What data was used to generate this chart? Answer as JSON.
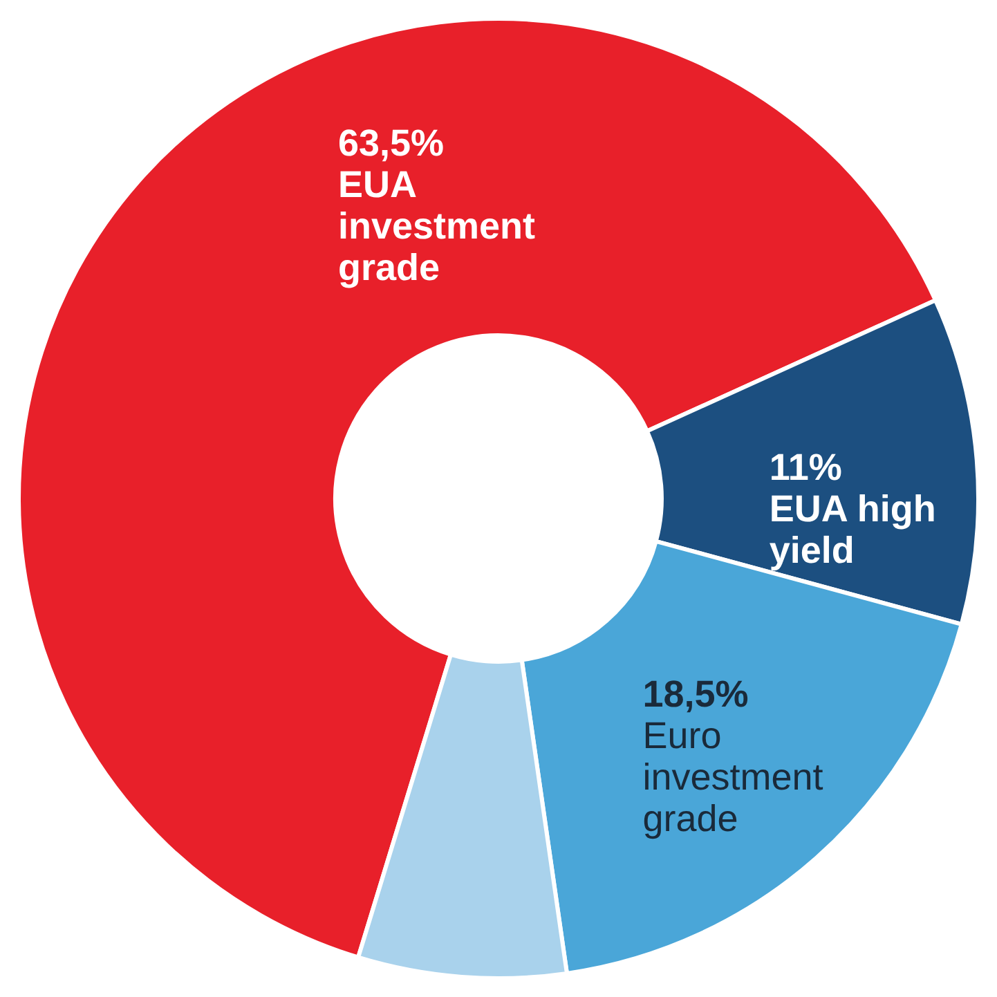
{
  "chart_data": {
    "type": "donut",
    "categories": [
      "EUA investment grade",
      "EUA high yield",
      "Euro investment grade",
      null
    ],
    "values": [
      63.5,
      11,
      18.5,
      7
    ],
    "colors": [
      "#e8202a",
      "#1c4f80",
      "#4aa6d8",
      "#a9d2ec"
    ],
    "value_labels": [
      "63,5%",
      "11%",
      "18,5%",
      null
    ],
    "legend": false
  }
}
